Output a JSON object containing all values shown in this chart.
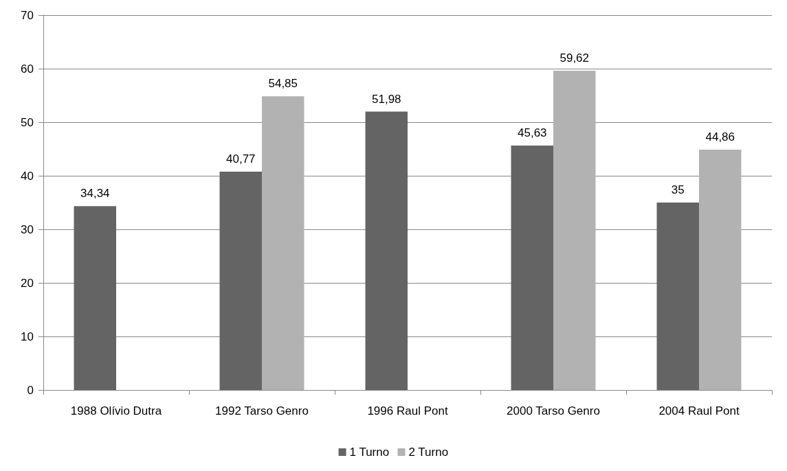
{
  "chart_data": {
    "type": "bar",
    "categories": [
      "1988 Olívio Dutra",
      "1992 Tarso Genro",
      "1996 Raul Pont",
      "2000 Tarso Genro",
      "2004 Raul Pont"
    ],
    "series": [
      {
        "name": "1 Turno",
        "color": "#646464",
        "values": [
          34.34,
          40.77,
          51.98,
          45.63,
          35
        ],
        "value_labels": [
          "34,34",
          "40,77",
          "51,98",
          "45,63",
          "35"
        ]
      },
      {
        "name": "2 Turno",
        "color": "#b2b2b2",
        "values": [
          null,
          54.85,
          null,
          59.62,
          44.86
        ],
        "value_labels": [
          null,
          "54,85",
          null,
          "59,62",
          "44,86"
        ]
      }
    ],
    "ylim": [
      0,
      70
    ],
    "yticks": [
      0,
      10,
      20,
      30,
      40,
      50,
      60,
      70
    ],
    "grid": "y",
    "legend": "bottom"
  }
}
